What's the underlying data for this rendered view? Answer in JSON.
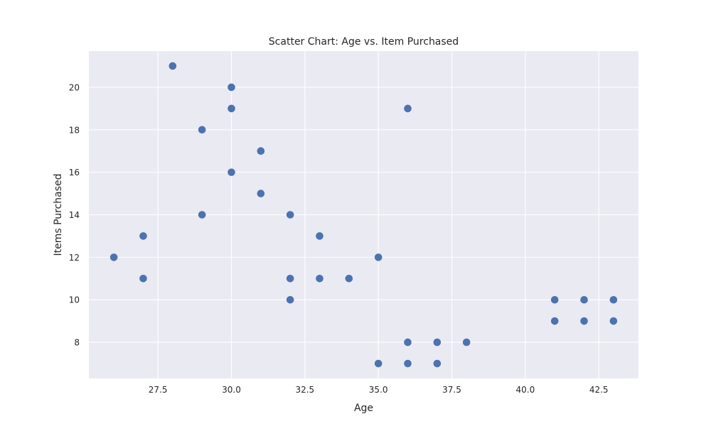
{
  "colors": {
    "plot_background": "#eaeaf2",
    "grid": "#ffffff",
    "point": "#4c72b0"
  },
  "chart_data": {
    "type": "scatter",
    "title": "Scatter Chart: Age vs. Item Purchased",
    "xlabel": "Age",
    "ylabel": "Items Purchased",
    "xlim": [
      25.15,
      43.85
    ],
    "ylim": [
      6.3,
      21.7
    ],
    "xticks": [
      27.5,
      30.0,
      32.5,
      35.0,
      37.5,
      40.0,
      42.5
    ],
    "xtick_labels": [
      "27.5",
      "30.0",
      "32.5",
      "35.0",
      "37.5",
      "40.0",
      "42.5"
    ],
    "yticks": [
      8,
      10,
      12,
      14,
      16,
      18,
      20
    ],
    "ytick_labels": [
      "8",
      "10",
      "12",
      "14",
      "16",
      "18",
      "20"
    ],
    "grid": true,
    "points": [
      {
        "x": 26,
        "y": 12
      },
      {
        "x": 27,
        "y": 13
      },
      {
        "x": 27,
        "y": 11
      },
      {
        "x": 28,
        "y": 21
      },
      {
        "x": 29,
        "y": 18
      },
      {
        "x": 29,
        "y": 14
      },
      {
        "x": 30,
        "y": 20
      },
      {
        "x": 30,
        "y": 19
      },
      {
        "x": 30,
        "y": 16
      },
      {
        "x": 31,
        "y": 17
      },
      {
        "x": 31,
        "y": 15
      },
      {
        "x": 32,
        "y": 14
      },
      {
        "x": 32,
        "y": 11
      },
      {
        "x": 32,
        "y": 10
      },
      {
        "x": 33,
        "y": 13
      },
      {
        "x": 33,
        "y": 11
      },
      {
        "x": 34,
        "y": 11
      },
      {
        "x": 35,
        "y": 12
      },
      {
        "x": 35,
        "y": 7
      },
      {
        "x": 36,
        "y": 19
      },
      {
        "x": 36,
        "y": 8
      },
      {
        "x": 36,
        "y": 7
      },
      {
        "x": 37,
        "y": 8
      },
      {
        "x": 37,
        "y": 7
      },
      {
        "x": 38,
        "y": 8
      },
      {
        "x": 41,
        "y": 10
      },
      {
        "x": 41,
        "y": 9
      },
      {
        "x": 42,
        "y": 10
      },
      {
        "x": 42,
        "y": 9
      },
      {
        "x": 43,
        "y": 10
      },
      {
        "x": 43,
        "y": 9
      }
    ]
  }
}
